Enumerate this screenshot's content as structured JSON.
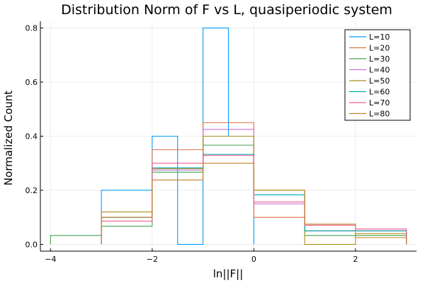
{
  "chart_data": {
    "type": "line",
    "title": "Distribution Norm of F vs L, quasiperiodic system",
    "xlabel": "ln||F||",
    "ylabel": "Normalized Count",
    "xlim": [
      -4.2,
      3.2
    ],
    "ylim": [
      -0.025,
      0.825
    ],
    "xticks": [
      -4,
      -2,
      0,
      2
    ],
    "yticks": [
      0.0,
      0.2,
      0.4,
      0.6,
      0.8
    ],
    "xtick_labels": [
      "−4",
      "−2",
      "0",
      "2"
    ],
    "ytick_labels": [
      "0.0",
      "0.2",
      "0.4",
      "0.6",
      "0.8"
    ],
    "grid": true,
    "legend_position": "top-right",
    "series": [
      {
        "name": "L=10",
        "color": "#009AFA",
        "edges": [
          -3,
          -2,
          -1.5,
          -1,
          -0.5,
          0
        ],
        "values": [
          0.2,
          0.4,
          0.0,
          0.8,
          0.4
        ]
      },
      {
        "name": "L=20",
        "color": "#E36F47",
        "edges": [
          -3,
          -2,
          -1,
          0,
          1,
          2,
          3
        ],
        "values": [
          0.1,
          0.35,
          0.45,
          0.1,
          0.05,
          0.05
        ]
      },
      {
        "name": "L=30",
        "color": "#3EA44E",
        "edges": [
          -4,
          -3,
          -2,
          -1,
          0,
          1,
          2,
          3
        ],
        "values": [
          0.033,
          0.067,
          0.267,
          0.367,
          0.2,
          0.033,
          0.033
        ]
      },
      {
        "name": "L=40",
        "color": "#C371D2",
        "edges": [
          -3,
          -2,
          -1,
          0,
          1,
          2,
          3
        ],
        "values": [
          0.1,
          0.275,
          0.425,
          0.15,
          0.05,
          0.05
        ]
      },
      {
        "name": "L=50",
        "color": "#AC8D18",
        "edges": [
          -3,
          -2,
          -1,
          0,
          1,
          2,
          3
        ],
        "values": [
          0.12,
          0.28,
          0.4,
          0.2,
          0.0,
          0.04
        ]
      },
      {
        "name": "L=60",
        "color": "#00A9AD",
        "edges": [
          -3,
          -2,
          -1,
          0,
          1,
          2,
          3
        ],
        "values": [
          0.1,
          0.283,
          0.333,
          0.183,
          0.05,
          0.05
        ]
      },
      {
        "name": "L=70",
        "color": "#ED5D92",
        "edges": [
          -3,
          -2,
          -1,
          0,
          1,
          2,
          3
        ],
        "values": [
          0.086,
          0.3,
          0.329,
          0.157,
          0.071,
          0.057
        ]
      },
      {
        "name": "L=80",
        "color": "#C68225",
        "edges": [
          -3,
          -2,
          -1,
          0,
          1,
          2,
          3
        ],
        "values": [
          0.1,
          0.238,
          0.3,
          0.2,
          0.075,
          0.025
        ]
      }
    ]
  }
}
